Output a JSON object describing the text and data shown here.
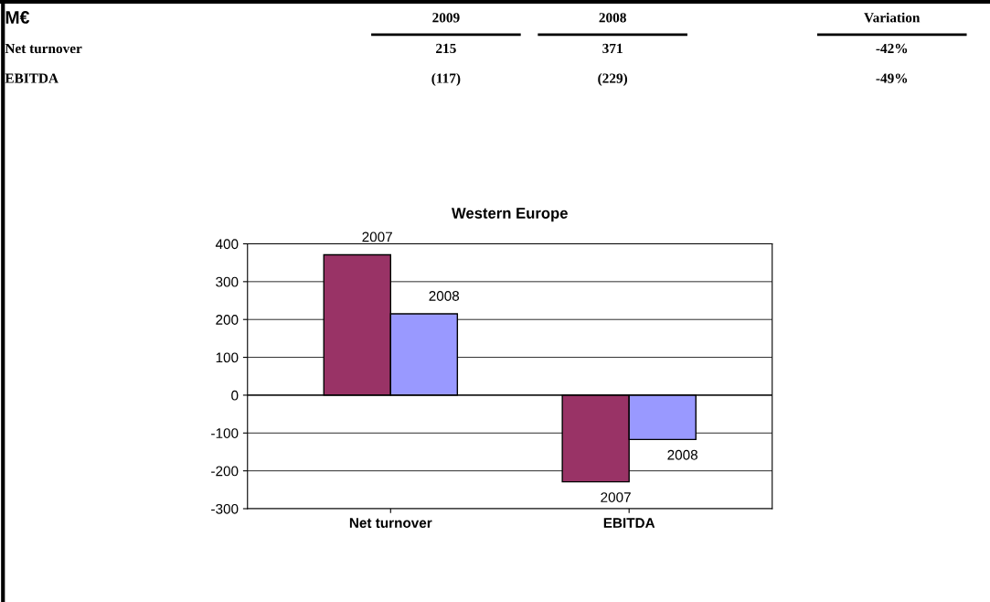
{
  "chart_data": [
    {
      "type": "other",
      "annotations": [
        "M€",
        "2009",
        "2008",
        "Variation",
        "Net turnover",
        "215",
        "371",
        "-42%",
        "EBITDA",
        "(117)",
        "(229)",
        "-49%"
      ]
    },
    {
      "type": "bar",
      "title": "Western Europe",
      "categories": [
        "Net turnover",
        "EBITDA"
      ],
      "series": [
        {
          "name": "2007",
          "color": "#993366",
          "values": [
            371,
            -229
          ]
        },
        {
          "name": "2008",
          "color": "#9999ff",
          "values": [
            215,
            -117
          ]
        }
      ],
      "ylim": [
        -300,
        400
      ],
      "yticks": [
        -300,
        -200,
        -100,
        0,
        100,
        200,
        300,
        400
      ],
      "grid": "y",
      "legend": false
    }
  ]
}
